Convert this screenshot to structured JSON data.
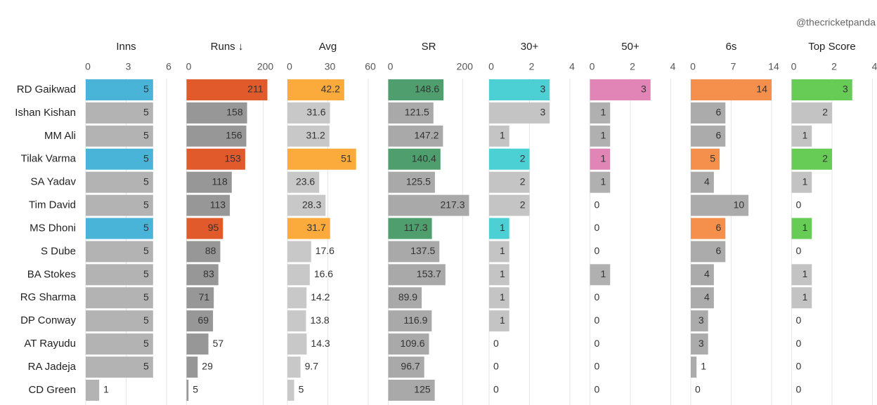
{
  "chart_data": {
    "type": "bar",
    "watermark": "@thecricketpanda",
    "categories": [
      "RD Gaikwad",
      "Ishan Kishan",
      "MM Ali",
      "Tilak Varma",
      "SA Yadav",
      "Tim David",
      "MS Dhoni",
      "S Dube",
      "BA Stokes",
      "RG Sharma",
      "DP Conway",
      "AT Rayudu",
      "RA Jadeja",
      "CD Green"
    ],
    "highlighted": [
      "RD Gaikwad",
      "Tilak Varma",
      "MS Dhoni"
    ],
    "grid": true,
    "series": [
      {
        "name": "Inns",
        "color": "#b3b3b3",
        "highlight_color": "#4ab4d8",
        "xlim": [
          0,
          6
        ],
        "xticks": [
          0,
          3,
          6
        ],
        "values": [
          5,
          5,
          5,
          5,
          5,
          5,
          5,
          5,
          5,
          5,
          5,
          5,
          5,
          1
        ]
      },
      {
        "name": "Runs ↓",
        "color": "#979797",
        "highlight_color": "#e05a2b",
        "xlim": [
          0,
          211
        ],
        "xticks": [
          0,
          200
        ],
        "values": [
          211,
          158,
          156,
          153,
          118,
          113,
          95,
          88,
          83,
          71,
          69,
          57,
          29,
          5
        ]
      },
      {
        "name": "Avg",
        "color": "#c8c8c8",
        "highlight_color": "#fbaa3c",
        "xlim": [
          0,
          60
        ],
        "xticks": [
          0,
          30,
          60
        ],
        "values": [
          42.2,
          31.6,
          31.2,
          51,
          23.6,
          28.3,
          31.7,
          17.6,
          16.6,
          14.2,
          13.8,
          14.3,
          9.7,
          5
        ]
      },
      {
        "name": "SR",
        "color": "#a9a9a9",
        "highlight_color": "#4e9e6e",
        "xlim": [
          0,
          217.3
        ],
        "xticks": [
          0,
          200
        ],
        "values": [
          148.6,
          121.5,
          147.2,
          140.4,
          125.5,
          217.3,
          117.3,
          137.5,
          153.7,
          89.9,
          116.9,
          109.6,
          96.7,
          125
        ]
      },
      {
        "name": "30+",
        "color": "#c4c4c4",
        "highlight_color": "#4dd0d4",
        "xlim": [
          0,
          4
        ],
        "xticks": [
          0,
          2,
          4
        ],
        "values": [
          3,
          3,
          1,
          2,
          2,
          2,
          1,
          1,
          1,
          1,
          1,
          0,
          0,
          0
        ]
      },
      {
        "name": "50+",
        "color": "#b0b0b0",
        "highlight_color": "#e085b5",
        "xlim": [
          0,
          4
        ],
        "xticks": [
          0,
          2,
          4
        ],
        "values": [
          3,
          1,
          1,
          1,
          1,
          0,
          0,
          0,
          1,
          0,
          0,
          0,
          0,
          0
        ]
      },
      {
        "name": "6s",
        "color": "#ababab",
        "highlight_color": "#f4904c",
        "xlim": [
          0,
          14
        ],
        "xticks": [
          0,
          7,
          14
        ],
        "values": [
          14,
          6,
          6,
          5,
          4,
          10,
          6,
          6,
          4,
          4,
          3,
          3,
          1,
          0
        ]
      },
      {
        "name": "Top Score",
        "color": "#c3c3c3",
        "highlight_color": "#66cc55",
        "xlim": [
          0,
          4
        ],
        "xticks": [
          0,
          2,
          4
        ],
        "values": [
          3,
          2,
          1,
          2,
          1,
          0,
          1,
          0,
          1,
          1,
          0,
          0,
          0,
          0
        ]
      }
    ]
  }
}
